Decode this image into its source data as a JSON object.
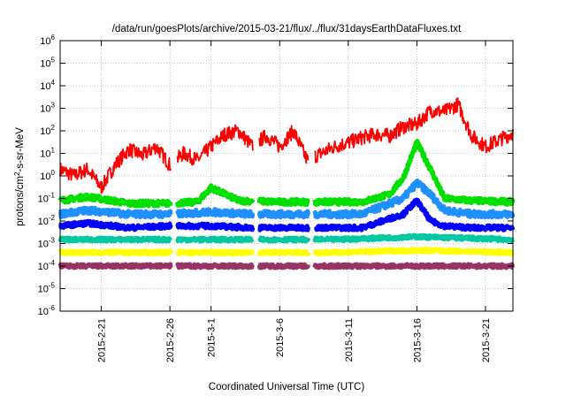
{
  "chart_data": {
    "type": "line",
    "title": "/data/run/goesPlots/archive/2015-03-21/flux/../flux/31daysEarthDataFluxes.txt",
    "xlabel": "Coordinated Universal Time (UTC)",
    "ylabel": {
      "prefix": "protons/cm",
      "sup": "2",
      "suffix": "-s-sr-MeV"
    },
    "y_scale": "log",
    "ylim_exp": [
      -6,
      6
    ],
    "y_ticks": [
      {
        "base": "10",
        "exp": "-6"
      },
      {
        "base": "10",
        "exp": "-5"
      },
      {
        "base": "10",
        "exp": "-4"
      },
      {
        "base": "10",
        "exp": "-3"
      },
      {
        "base": "10",
        "exp": "-2"
      },
      {
        "base": "10",
        "exp": "-1"
      },
      {
        "base": "10",
        "exp": "0"
      },
      {
        "base": "10",
        "exp": "1"
      },
      {
        "base": "10",
        "exp": "2"
      },
      {
        "base": "10",
        "exp": "3"
      },
      {
        "base": "10",
        "exp": "4"
      },
      {
        "base": "10",
        "exp": "5"
      },
      {
        "base": "10",
        "exp": "6"
      }
    ],
    "xlim": [
      "2015-02-18",
      "2015-03-23"
    ],
    "x_ticks": [
      "2015-2-21",
      "2015-2-26",
      "2015-3-1",
      "2015-3-6",
      "2015-3-11",
      "2015-3-16",
      "2015-3-21"
    ],
    "grid": true,
    "data_gaps": [
      [
        "2015-02-26",
        "2015-02-26"
      ],
      [
        "2015-03-04",
        "2015-03-04"
      ],
      [
        "2015-03-08",
        "2015-03-08"
      ]
    ],
    "series": [
      {
        "color": "#ff0000",
        "x": [
          "2015-02-18",
          "2015-02-19",
          "2015-02-20",
          "2015-02-21",
          "2015-02-22",
          "2015-02-23",
          "2015-02-24",
          "2015-02-25",
          "2015-02-26",
          "2015-02-27",
          "2015-02-28",
          "2015-03-01",
          "2015-03-02",
          "2015-03-03",
          "2015-03-04",
          "2015-03-05",
          "2015-03-06",
          "2015-03-07",
          "2015-03-08",
          "2015-03-09",
          "2015-03-10",
          "2015-03-11",
          "2015-03-12",
          "2015-03-13",
          "2015-03-14",
          "2015-03-15",
          "2015-03-16",
          "2015-03-17",
          "2015-03-18",
          "2015-03-19",
          "2015-03-20",
          "2015-03-21",
          "2015-03-22",
          "2015-03-23"
        ],
        "values": [
          2,
          1,
          2,
          0.3,
          3,
          15,
          8,
          20,
          3,
          10,
          5,
          20,
          70,
          100,
          20,
          60,
          20,
          100,
          5,
          10,
          20,
          30,
          50,
          70,
          60,
          150,
          200,
          800,
          700,
          1500,
          60,
          20,
          40,
          80
        ]
      },
      {
        "color": "#00e000",
        "x": [
          "2015-02-18",
          "2015-02-20",
          "2015-02-23",
          "2015-02-26",
          "2015-02-28",
          "2015-03-01",
          "2015-03-03",
          "2015-03-06",
          "2015-03-09",
          "2015-03-12",
          "2015-03-14",
          "2015-03-15",
          "2015-03-16",
          "2015-03-17",
          "2015-03-18",
          "2015-03-20",
          "2015-03-23"
        ],
        "values": [
          0.08,
          0.12,
          0.06,
          0.06,
          0.07,
          0.3,
          0.08,
          0.07,
          0.07,
          0.07,
          0.15,
          0.8,
          30,
          2,
          0.1,
          0.08,
          0.07
        ]
      },
      {
        "color": "#1e90ff",
        "x": [
          "2015-02-18",
          "2015-02-20",
          "2015-02-23",
          "2015-02-26",
          "2015-03-01",
          "2015-03-04",
          "2015-03-08",
          "2015-03-12",
          "2015-03-15",
          "2015-03-16",
          "2015-03-17",
          "2015-03-18",
          "2015-03-20",
          "2015-03-23"
        ],
        "values": [
          0.02,
          0.03,
          0.02,
          0.02,
          0.025,
          0.02,
          0.02,
          0.02,
          0.1,
          0.5,
          0.15,
          0.03,
          0.02,
          0.02
        ]
      },
      {
        "color": "#0000ff",
        "x": [
          "2015-02-18",
          "2015-02-20",
          "2015-02-23",
          "2015-02-26",
          "2015-03-01",
          "2015-03-04",
          "2015-03-08",
          "2015-03-12",
          "2015-03-15",
          "2015-03-16",
          "2015-03-17",
          "2015-03-18",
          "2015-03-20",
          "2015-03-23"
        ],
        "values": [
          0.006,
          0.008,
          0.005,
          0.006,
          0.006,
          0.005,
          0.005,
          0.005,
          0.02,
          0.08,
          0.01,
          0.006,
          0.005,
          0.005
        ]
      },
      {
        "color": "#00c8a0",
        "x": [
          "2015-02-18",
          "2015-02-26",
          "2015-03-04",
          "2015-03-10",
          "2015-03-16",
          "2015-03-23"
        ],
        "values": [
          0.0015,
          0.0015,
          0.0015,
          0.0015,
          0.002,
          0.0015
        ]
      },
      {
        "color": "#ffff00",
        "x": [
          "2015-02-18",
          "2015-02-26",
          "2015-03-04",
          "2015-03-10",
          "2015-03-16",
          "2015-03-23"
        ],
        "values": [
          0.0004,
          0.0004,
          0.0004,
          0.0004,
          0.0005,
          0.0004
        ]
      },
      {
        "color": "#993366",
        "x": [
          "2015-02-18",
          "2015-02-26",
          "2015-03-04",
          "2015-03-10",
          "2015-03-16",
          "2015-03-23"
        ],
        "values": [
          0.0001,
          0.0001,
          0.0001,
          0.0001,
          0.0001,
          0.0001
        ]
      }
    ]
  }
}
